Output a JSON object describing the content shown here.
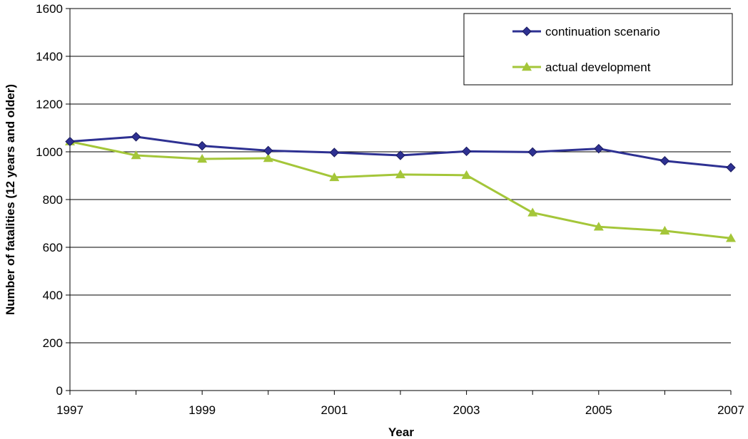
{
  "chart_data": {
    "type": "line",
    "xlabel": "Year",
    "ylabel": "Number of fatalities (12 years and older)",
    "x": [
      1997,
      1998,
      1999,
      2000,
      2001,
      2002,
      2003,
      2004,
      2005,
      2006,
      2007
    ],
    "xticks": [
      "1997",
      "1999",
      "2001",
      "2003",
      "2005",
      "2007"
    ],
    "xlim": [
      1997,
      2007
    ],
    "ylim": [
      0,
      1600
    ],
    "yticks": [
      "0",
      "200",
      "400",
      "600",
      "800",
      "1000",
      "1200",
      "1400",
      "1600"
    ],
    "grid": "horizontal",
    "legend_position": "top-right",
    "series": [
      {
        "name": "continuation scenario",
        "color": "#2e3192",
        "marker": "diamond",
        "values": [
          1043,
          1063,
          1025,
          1005,
          997,
          985,
          1002,
          999,
          1013,
          962,
          934
        ]
      },
      {
        "name": "actual development",
        "color": "#a4c639",
        "marker": "triangle",
        "values": [
          1043,
          985,
          970,
          973,
          893,
          905,
          902,
          745,
          686,
          669,
          638
        ]
      }
    ]
  }
}
